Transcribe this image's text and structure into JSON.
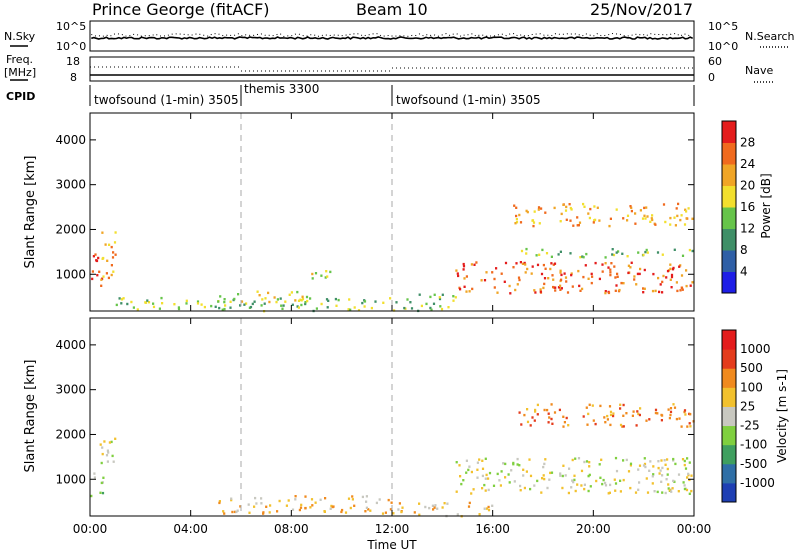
{
  "header": {
    "title": "Prince George (fitACF)",
    "beam": "Beam 10",
    "date": "25/Nov/2017"
  },
  "top_panels": {
    "nsky_label": "N.Sky",
    "nsearch_label": "N.Search",
    "noise_ticks": [
      "10^5",
      "10^0"
    ],
    "freq_label": "Freq.",
    "freq_unit": "[MHz]",
    "freq_ticks": [
      "18",
      "8"
    ],
    "nave_label": "Nave",
    "nave_ticks": [
      "60",
      "0"
    ],
    "cpid_label": "CPID",
    "cpid_segments": [
      {
        "label": "twofsound (1-min) 3505",
        "start_hour": 0,
        "end_hour": 6
      },
      {
        "label": "themis 3300",
        "start_hour": 6,
        "end_hour": 12
      },
      {
        "label": "twofsound (1-min) 3505",
        "start_hour": 12,
        "end_hour": 24
      }
    ]
  },
  "chart_data": [
    {
      "type": "heatmap",
      "panel": "power",
      "ylabel": "Slant Range [km]",
      "ylim": [
        180,
        4600
      ],
      "y_ticks": [
        1000,
        2000,
        3000,
        4000
      ],
      "x_ticks": [
        "00:00",
        "04:00",
        "08:00",
        "12:00",
        "16:00",
        "20:00",
        "00:00"
      ],
      "x_range_hours": [
        0,
        24
      ],
      "xlabel": "",
      "colorbar": {
        "label": "Power [dB]",
        "ticks": [
          "4",
          "8",
          "12",
          "16",
          "20",
          "24",
          "28"
        ],
        "colors": [
          "#1e1ee6",
          "#2f5fa6",
          "#3f8f67",
          "#66c44a",
          "#f2df2e",
          "#f0a526",
          "#f06a1e",
          "#e41c1c"
        ]
      },
      "echo_regions": [
        {
          "t0": 0.0,
          "t1": 0.5,
          "r0": 600,
          "r1": 1500,
          "level": 7
        },
        {
          "t0": 0.3,
          "t1": 1.0,
          "r0": 900,
          "r1": 2000,
          "level": 5
        },
        {
          "t0": 1.0,
          "t1": 12.0,
          "r0": 200,
          "r1": 500,
          "level": 3
        },
        {
          "t0": 5.0,
          "t1": 9.0,
          "r0": 400,
          "r1": 650,
          "level": 4
        },
        {
          "t0": 8.5,
          "t1": 10.0,
          "r0": 900,
          "r1": 1100,
          "level": 4
        },
        {
          "t0": 12.0,
          "t1": 14.5,
          "r0": 200,
          "r1": 600,
          "level": 3
        },
        {
          "t0": 14.5,
          "t1": 24.0,
          "r0": 600,
          "r1": 1300,
          "level": 6
        },
        {
          "t0": 16.8,
          "t1": 24.0,
          "r0": 2100,
          "r1": 2600,
          "level": 5
        },
        {
          "t0": 17.0,
          "t1": 24.0,
          "r0": 1400,
          "r1": 1600,
          "level": 3
        }
      ]
    },
    {
      "type": "heatmap",
      "panel": "velocity",
      "ylabel": "Slant Range [km]",
      "xlabel": "Time UT",
      "ylim": [
        180,
        4600
      ],
      "y_ticks": [
        1000,
        2000,
        3000,
        4000
      ],
      "x_ticks": [
        "00:00",
        "04:00",
        "08:00",
        "12:00",
        "16:00",
        "20:00",
        "00:00"
      ],
      "x_range_hours": [
        0,
        24
      ],
      "colorbar": {
        "label": "Velocity [m s-1]",
        "ticks": [
          "1000",
          "500",
          "100",
          "25",
          "-25",
          "-100",
          "-500",
          "-1000"
        ],
        "colors": [
          "#1e3fb3",
          "#2f6fa6",
          "#3f9f5f",
          "#7fcf3f",
          "#c8c8c0",
          "#f2c12e",
          "#f08a1e",
          "#e43c1c",
          "#e41c1c"
        ]
      },
      "echo_regions": [
        {
          "t0": 0.0,
          "t1": 0.5,
          "r0": 600,
          "r1": 1200,
          "level": 3
        },
        {
          "t0": 0.3,
          "t1": 1.0,
          "r0": 1200,
          "r1": 2000,
          "level": 4
        },
        {
          "t0": 5.0,
          "t1": 12.0,
          "r0": 250,
          "r1": 650,
          "level": 5
        },
        {
          "t0": 12.0,
          "t1": 16.0,
          "r0": 200,
          "r1": 500,
          "level": 5
        },
        {
          "t0": 14.5,
          "t1": 24.0,
          "r0": 700,
          "r1": 1500,
          "level": 4
        },
        {
          "t0": 17.0,
          "t1": 24.0,
          "r0": 2200,
          "r1": 2700,
          "level": 6
        }
      ]
    }
  ]
}
